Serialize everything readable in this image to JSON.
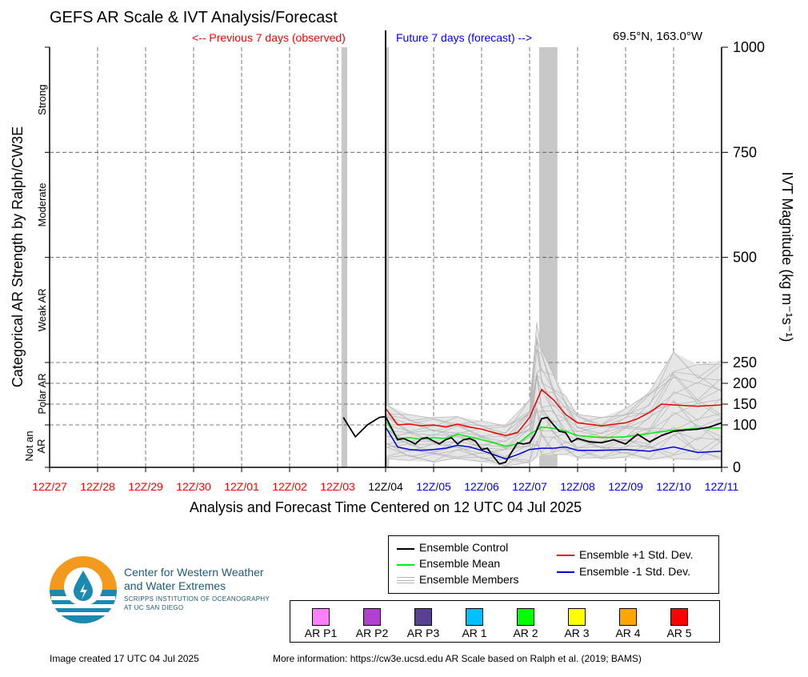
{
  "header": {
    "title": "GEFS AR Scale & IVT Analysis/Forecast",
    "prev_label": "<-- Previous 7 days (observed)",
    "future_label": "Future 7 days (forecast) -->",
    "location": "69.5°N, 163.0°W"
  },
  "colors": {
    "observed": "#ff0000",
    "forecast": "#0000ff",
    "control": "#000000",
    "mean": "#00ee00",
    "plus_sd": "#ee0000",
    "minus_sd": "#0000dd",
    "members": "#b4b4b4",
    "shading": "#c8c8c8"
  },
  "chart_data": {
    "type": "line",
    "xlabel": "Analysis and Forecast Time Centered on 12 UTC 04 Jul 2025",
    "ylabel_left": "Categorical AR Strength by Ralph/CW3E",
    "ylabel_right": "IVT Magnitude (kg m⁻¹s⁻¹)",
    "x_ticks": [
      "12Z/27",
      "12Z/28",
      "12Z/29",
      "12Z/30",
      "12Z/01",
      "12Z/02",
      "12Z/03",
      "12Z/04",
      "12Z/05",
      "12Z/06",
      "12Z/07",
      "12Z/08",
      "12Z/09",
      "12Z/10",
      "12Z/11"
    ],
    "x_tick_colors": [
      "observed",
      "observed",
      "observed",
      "observed",
      "observed",
      "observed",
      "observed",
      "control",
      "forecast",
      "forecast",
      "forecast",
      "forecast",
      "forecast",
      "forecast",
      "forecast"
    ],
    "y_ticks": [
      0,
      100,
      150,
      200,
      250,
      500,
      750,
      1000
    ],
    "y_display_range": [
      0,
      1000
    ],
    "categories": [
      "Not an AR",
      "Polar AR",
      "Weak AR",
      "Moderate",
      "Strong"
    ],
    "shaded_periods": [
      [
        6.08,
        6.2
      ],
      [
        7.0,
        7.07
      ],
      [
        10.2,
        10.58
      ],
      [
        13.98,
        14.0
      ]
    ],
    "series": [
      {
        "name": "Ensemble Control",
        "color_key": "control",
        "x": [
          6.12,
          6.37,
          6.62,
          6.87,
          7.0,
          7.25,
          7.37,
          7.5,
          7.62,
          7.75,
          7.87,
          8.0,
          8.12,
          8.25,
          8.37,
          8.5,
          8.62,
          8.75,
          8.87,
          9.0,
          9.12,
          9.25,
          9.37,
          9.5,
          9.62,
          9.75,
          9.87,
          10.0,
          10.12,
          10.25,
          10.37,
          10.5,
          10.62,
          10.75,
          10.87,
          11.0,
          11.25,
          11.5,
          11.75,
          12.0,
          12.25,
          12.5,
          12.75,
          13.0,
          13.25,
          13.5,
          13.75,
          14.0
        ],
        "y": [
          118,
          72,
          100,
          118,
          120,
          65,
          68,
          62,
          55,
          68,
          70,
          62,
          55,
          65,
          70,
          55,
          65,
          68,
          62,
          42,
          45,
          25,
          8,
          12,
          35,
          58,
          55,
          58,
          80,
          115,
          118,
          100,
          85,
          82,
          60,
          68,
          60,
          58,
          65,
          55,
          78,
          60,
          75,
          85,
          88,
          90,
          95,
          105
        ]
      },
      {
        "name": "Ensemble Mean",
        "color_key": "mean",
        "x": [
          7.0,
          7.25,
          7.5,
          7.75,
          8.0,
          8.25,
          8.5,
          8.75,
          9.0,
          9.25,
          9.5,
          9.75,
          10.0,
          10.25,
          10.5,
          10.75,
          11.0,
          11.5,
          12.0,
          12.5,
          13.0,
          13.5,
          14.0
        ],
        "y": [
          110,
          68,
          70,
          66,
          70,
          68,
          78,
          72,
          65,
          58,
          50,
          55,
          78,
          95,
          92,
          85,
          75,
          70,
          72,
          80,
          88,
          92,
          93
        ]
      },
      {
        "name": "Ensemble +1 Std. Dev.",
        "color_key": "plus_sd",
        "x": [
          7.0,
          7.25,
          7.5,
          7.75,
          8.0,
          8.25,
          8.5,
          8.75,
          9.0,
          9.25,
          9.5,
          9.75,
          10.0,
          10.25,
          10.5,
          10.75,
          11.0,
          11.5,
          12.0,
          12.25,
          12.5,
          12.75,
          13.0,
          13.5,
          14.0
        ],
        "y": [
          140,
          100,
          102,
          98,
          100,
          95,
          102,
          95,
          90,
          82,
          75,
          82,
          118,
          185,
          160,
          125,
          105,
          98,
          105,
          115,
          130,
          150,
          148,
          145,
          148
        ]
      },
      {
        "name": "Ensemble -1 Std. Dev.",
        "color_key": "minus_sd",
        "x": [
          7.0,
          7.25,
          7.5,
          7.75,
          8.0,
          8.25,
          8.5,
          8.75,
          9.0,
          9.25,
          9.5,
          9.75,
          10.0,
          10.25,
          10.5,
          10.75,
          11.0,
          11.5,
          12.0,
          12.5,
          13.0,
          13.5,
          14.0
        ],
        "y": [
          95,
          48,
          42,
          40,
          42,
          45,
          52,
          48,
          40,
          30,
          20,
          30,
          42,
          45,
          45,
          48,
          40,
          40,
          42,
          38,
          48,
          35,
          38
        ]
      }
    ],
    "members_band": {
      "x": [
        7.0,
        7.5,
        8.0,
        8.5,
        9.0,
        9.5,
        10.0,
        10.15,
        10.25,
        10.5,
        10.75,
        11.0,
        11.5,
        12.0,
        12.5,
        13.0,
        13.5,
        14.0
      ],
      "low": [
        20,
        15,
        12,
        20,
        12,
        2,
        10,
        22,
        30,
        30,
        28,
        22,
        20,
        22,
        18,
        20,
        15,
        18
      ],
      "high": [
        150,
        125,
        118,
        120,
        110,
        100,
        160,
        345,
        280,
        220,
        170,
        125,
        118,
        140,
        180,
        275,
        245,
        255
      ]
    }
  },
  "legend": {
    "control": "Ensemble Control",
    "mean": "Ensemble Mean",
    "members": "Ensemble Members",
    "plus_sd": "Ensemble +1 Std. Dev.",
    "minus_sd": "Ensemble -1 Std. Dev."
  },
  "ar_scale": [
    {
      "label": "AR P1",
      "color": "#ff80ff"
    },
    {
      "label": "AR P2",
      "color": "#b040d0"
    },
    {
      "label": "AR P3",
      "color": "#5a4090"
    },
    {
      "label": "AR 1",
      "color": "#00bfff"
    },
    {
      "label": "AR 2",
      "color": "#00ff00"
    },
    {
      "label": "AR 3",
      "color": "#ffff00"
    },
    {
      "label": "AR 4",
      "color": "#ffa500"
    },
    {
      "label": "AR 5",
      "color": "#ff0000"
    }
  ],
  "logo": {
    "line1": "Center for Western Weather",
    "line2": "and Water Extremes",
    "line3": "SCRIPPS INSTITUTION OF OCEANOGRAPHY",
    "line4": "AT UC SAN DIEGO"
  },
  "footer": {
    "created": "Image created 17 UTC 04 Jul 2025",
    "info": "More information: https://cw3e.ucsd.edu AR Scale based on Ralph et al. (2019; BAMS)"
  }
}
